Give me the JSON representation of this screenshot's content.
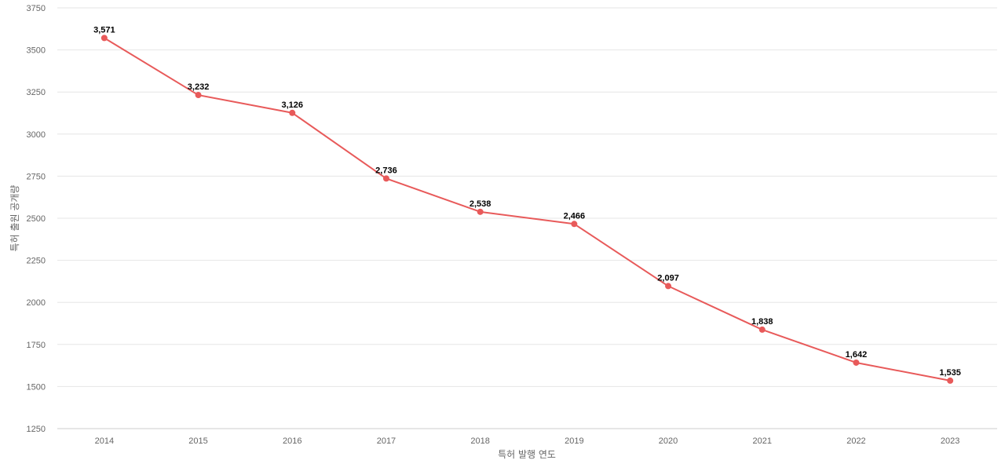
{
  "chart_data": {
    "type": "line",
    "title": "",
    "xlabel": "특허 발행 연도",
    "ylabel": "특허 출원 공개량",
    "categories": [
      "2014",
      "2015",
      "2016",
      "2017",
      "2018",
      "2019",
      "2020",
      "2021",
      "2022",
      "2023"
    ],
    "series": [
      {
        "values": [
          3571,
          3232,
          3126,
          2736,
          2538,
          2466,
          2097,
          1838,
          1642,
          1535
        ],
        "labels": [
          "3,571",
          "3,232",
          "3,126",
          "2,736",
          "2,538",
          "2,466",
          "2,097",
          "1,838",
          "1,642",
          "1,535"
        ],
        "color": "#e85a5a"
      }
    ],
    "ylim": [
      1250,
      3750
    ],
    "yticks": [
      1250,
      1500,
      1750,
      2000,
      2250,
      2500,
      2750,
      3000,
      3250,
      3500,
      3750
    ],
    "grid": true,
    "legend": "none"
  }
}
